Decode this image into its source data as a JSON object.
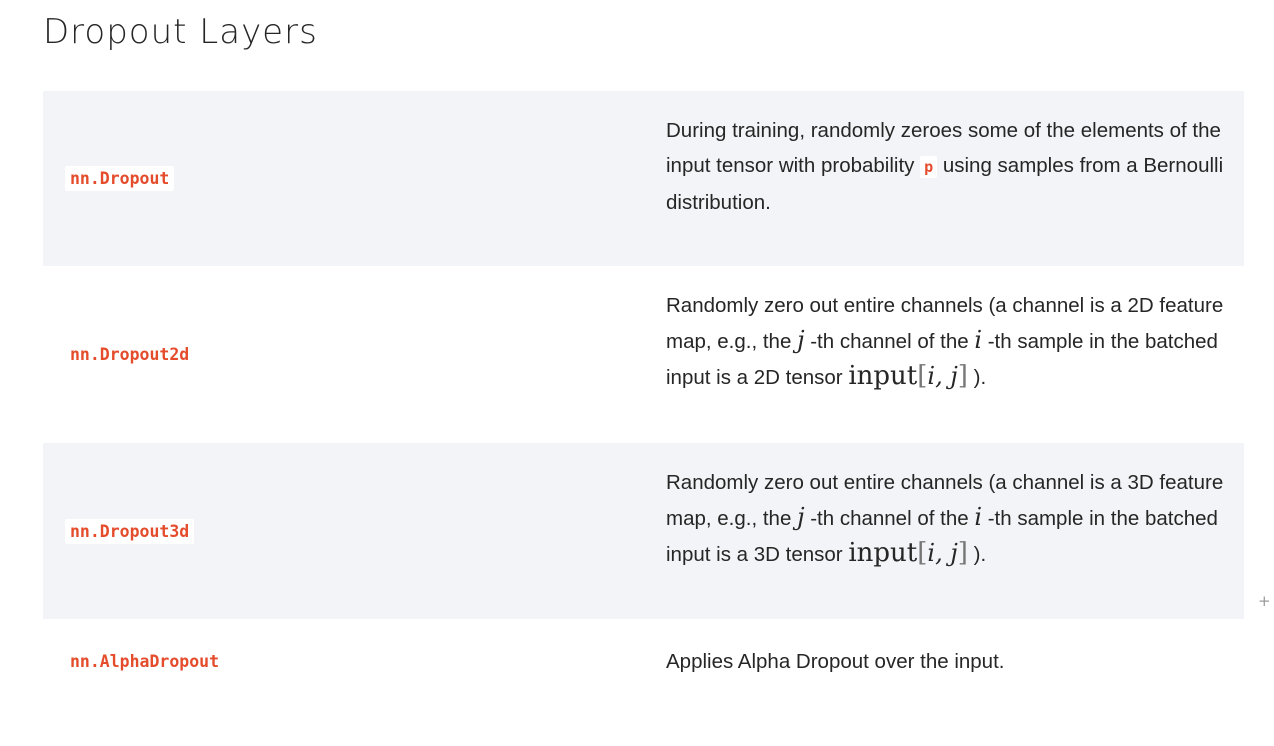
{
  "page": {
    "title": "Dropout Layers"
  },
  "rows": [
    {
      "name": "nn.Dropout",
      "desc": {
        "part1": "During training, randomly zeroes some of the elements of the input tensor with probability ",
        "param": "p",
        "part2": " using samples from a Bernoulli distribution."
      }
    },
    {
      "name": "nn.Dropout2d",
      "desc": {
        "part1": "Randomly zero out entire channels (a channel is a 2D feature map, e.g., the ",
        "math_j": "j",
        "part2": " -th channel of the ",
        "math_i": "i",
        "part3": " -th sample in the batched input is a 2D tensor ",
        "math_input": "input",
        "math_open": "[",
        "math_ij": "i, j",
        "math_close": "]",
        "part4": " )."
      }
    },
    {
      "name": "nn.Dropout3d",
      "desc": {
        "part1": "Randomly zero out entire channels (a channel is a 3D feature map, e.g., the ",
        "math_j": "j",
        "part2": " -th channel of the ",
        "math_i": "i",
        "part3": " -th sample in the batched input is a 3D tensor ",
        "math_input": "input",
        "math_open": "[",
        "math_ij": "i, j",
        "math_close": "]",
        "part4": " )."
      }
    },
    {
      "name": "nn.AlphaDropout",
      "desc": {
        "text": "Applies Alpha Dropout over the input."
      }
    }
  ],
  "icons": {
    "expand": "plus-icon"
  },
  "colors": {
    "code": "#e44c2c",
    "row_shade": "#f3f4f7",
    "text": "#262626"
  }
}
